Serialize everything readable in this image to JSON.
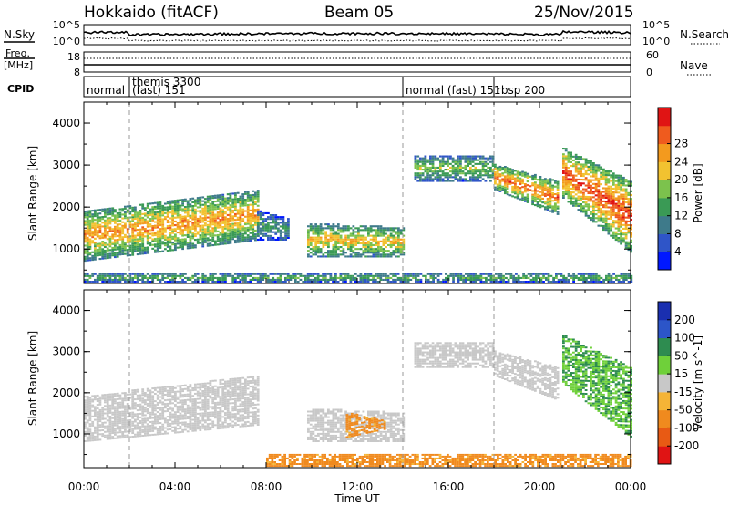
{
  "header": {
    "radar": "Hokkaido (fitACF)",
    "beam": "Beam 05",
    "date": "25/Nov/2015"
  },
  "side_labels": {
    "nsky": "N.Sky",
    "nsearch": "N.Search",
    "freq_line1": "Freq.",
    "freq_line2": "[MHz]",
    "nave": "Nave",
    "cpid": "CPID"
  },
  "noise_panel": {
    "left_ticks": [
      "10^5",
      "10^0"
    ],
    "right_ticks": [
      "10^5",
      "10^0"
    ]
  },
  "freq_panel": {
    "left_ticks": [
      "18",
      "8"
    ],
    "right_ticks": [
      "60",
      "0"
    ]
  },
  "cpid_segments": [
    {
      "start_hour": 0.0,
      "label": "normal",
      "label2": ""
    },
    {
      "start_hour": 2.0,
      "label": "themis 3300",
      "label2": "(fast) 151"
    },
    {
      "start_hour": 14.0,
      "label": "normal (fast) 151",
      "label2": ""
    },
    {
      "start_hour": 18.0,
      "label": "rbsp 200",
      "label2": ""
    }
  ],
  "axes": {
    "xlabel": "Time UT",
    "xticks": [
      "00:00",
      "04:00",
      "08:00",
      "12:00",
      "16:00",
      "20:00",
      "00:00"
    ],
    "xrange_hours": [
      0,
      24
    ],
    "ylabel": "Slant Range [km]",
    "yticks": [
      1000,
      2000,
      3000,
      4000
    ],
    "yrange_km": [
      180,
      4500
    ]
  },
  "power_colorbar": {
    "label": "Power [dB]",
    "ticks": [
      "4",
      "8",
      "12",
      "16",
      "20",
      "24",
      "28"
    ],
    "colors": [
      "#0018ff",
      "#2f55c8",
      "#3e7a8a",
      "#3a9a55",
      "#7cc24d",
      "#f2c230",
      "#f39a1e",
      "#ef5b1e",
      "#e01414"
    ]
  },
  "velocity_colorbar": {
    "label": "Velocity [m s^-1]",
    "ticks": [
      "200",
      "100",
      "50",
      "15",
      "-15",
      "-50",
      "-100",
      "-200"
    ],
    "colors": [
      "#1a2fb0",
      "#2c55c8",
      "#2e8c50",
      "#6fd03a",
      "#c8c8c8",
      "#f5b436",
      "#f08a1e",
      "#e85a14",
      "#e01414"
    ]
  },
  "chart_data": {
    "type": "heatmap",
    "title": "Hokkaido (fitACF) Beam 05 25/Nov/2015",
    "xlabel": "Time UT",
    "ylabel": "Slant Range [km]",
    "xlim": [
      0,
      24
    ],
    "ylim": [
      180,
      4500
    ],
    "x_unit": "hours UT",
    "y_unit": "km",
    "mode_change_hours": [
      2.0,
      14.0,
      18.0
    ],
    "grid": false,
    "panels": [
      {
        "name": "Power [dB]",
        "regions": [
          {
            "t0": 0.0,
            "t1": 7.6,
            "r_low_start": 700,
            "r_low_end": 1200,
            "r_high_start": 1900,
            "r_high_end": 2400,
            "value": 20
          },
          {
            "t0": 7.6,
            "t1": 9.0,
            "r_low_start": 1200,
            "r_low_end": 1200,
            "r_high_start": 1900,
            "r_high_end": 1700,
            "value": 10
          },
          {
            "t0": 9.8,
            "t1": 14.0,
            "r_low_start": 800,
            "r_low_end": 800,
            "r_high_start": 1600,
            "r_high_end": 1500,
            "value": 18
          },
          {
            "t0": 14.5,
            "t1": 18.0,
            "r_low_start": 2600,
            "r_low_end": 2600,
            "r_high_start": 3200,
            "r_high_end": 3200,
            "value": 14
          },
          {
            "t0": 18.0,
            "t1": 20.8,
            "r_low_start": 2400,
            "r_low_end": 1800,
            "r_high_start": 3000,
            "r_high_end": 2600,
            "value": 22
          },
          {
            "t0": 21.0,
            "t1": 24.0,
            "r_low_start": 2200,
            "r_low_end": 900,
            "r_high_start": 3400,
            "r_high_end": 2600,
            "value": 24
          },
          {
            "t0": 0.0,
            "t1": 24.0,
            "r_low_start": 200,
            "r_low_end": 200,
            "r_high_start": 400,
            "r_high_end": 400,
            "value": 12
          }
        ]
      },
      {
        "name": "Velocity [m s^-1]",
        "regions": [
          {
            "t0": 0.0,
            "t1": 7.6,
            "r_low_start": 800,
            "r_low_end": 1200,
            "r_high_start": 1900,
            "r_high_end": 2400,
            "value": 0
          },
          {
            "t0": 9.8,
            "t1": 14.0,
            "r_low_start": 800,
            "r_low_end": 800,
            "r_high_start": 1600,
            "r_high_end": 1500,
            "value": 0
          },
          {
            "t0": 11.5,
            "t1": 13.2,
            "r_low_start": 900,
            "r_low_end": 1100,
            "r_high_start": 1500,
            "r_high_end": 1300,
            "value": -40
          },
          {
            "t0": 14.5,
            "t1": 18.0,
            "r_low_start": 2600,
            "r_low_end": 2600,
            "r_high_start": 3200,
            "r_high_end": 3200,
            "value": 0
          },
          {
            "t0": 18.0,
            "t1": 20.8,
            "r_low_start": 2400,
            "r_low_end": 1800,
            "r_high_start": 3000,
            "r_high_end": 2600,
            "value": 0
          },
          {
            "t0": 21.0,
            "t1": 24.0,
            "r_low_start": 2200,
            "r_low_end": 900,
            "r_high_start": 3400,
            "r_high_end": 2600,
            "value": 30
          },
          {
            "t0": 8.0,
            "t1": 24.0,
            "r_low_start": 200,
            "r_low_end": 200,
            "r_high_start": 500,
            "r_high_end": 500,
            "value": -40
          }
        ]
      }
    ]
  }
}
